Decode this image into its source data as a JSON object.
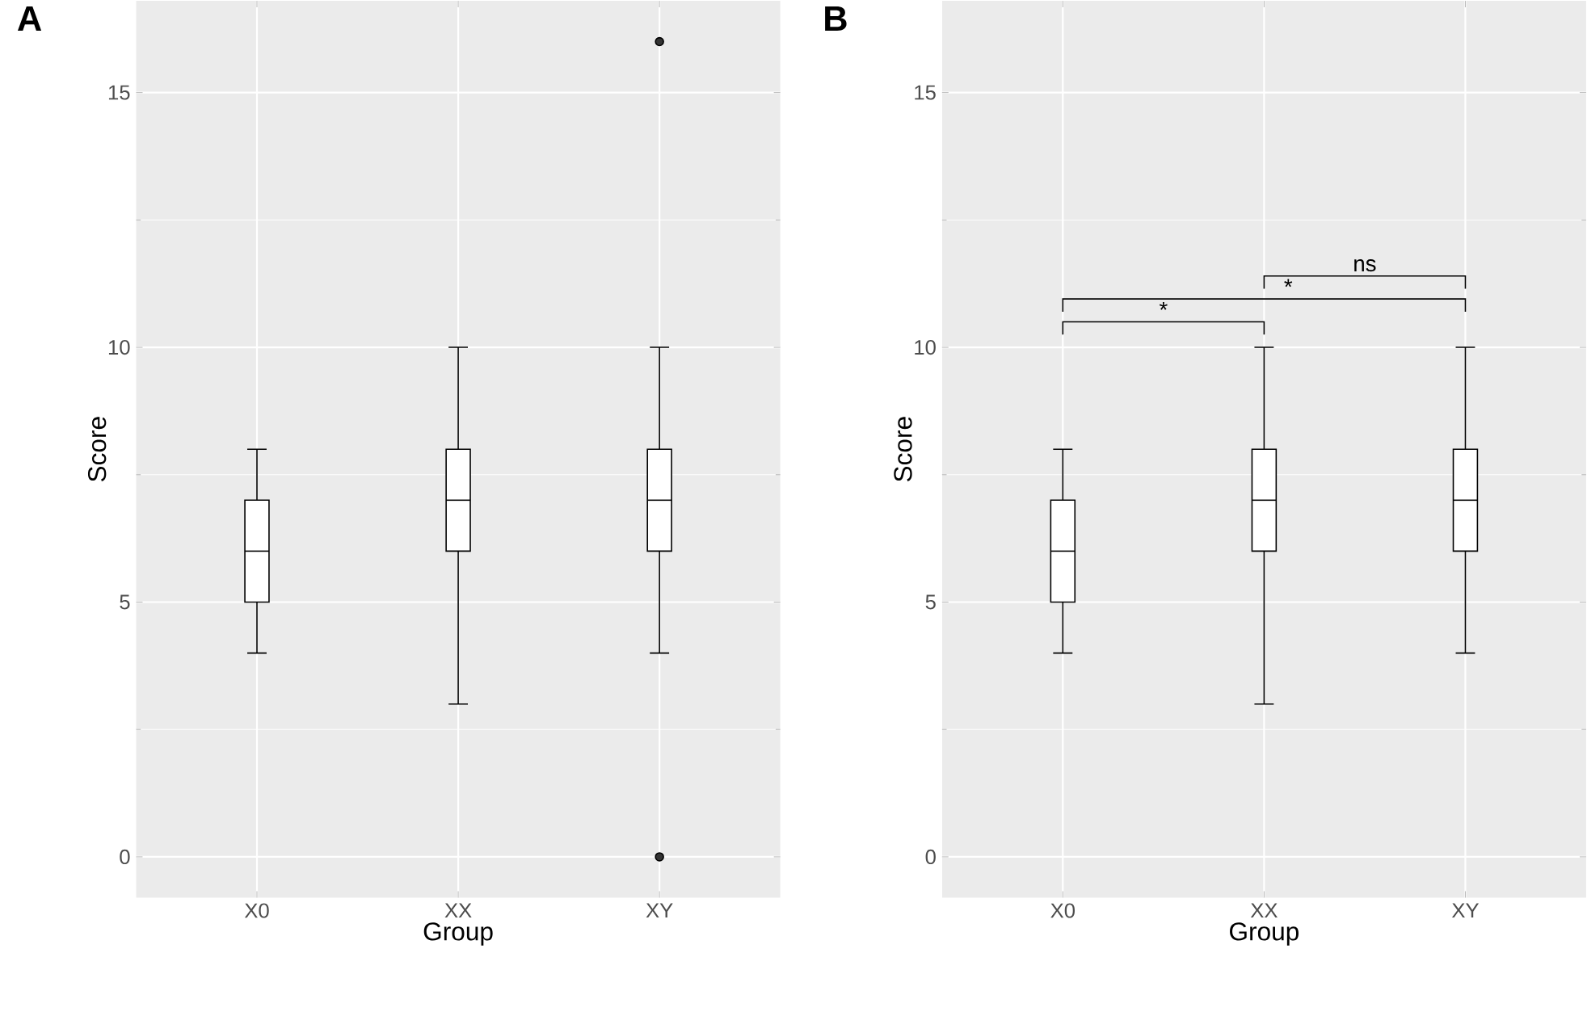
{
  "chart_data": [
    {
      "type": "box",
      "title": "A",
      "xlabel": "Group",
      "ylabel": "Score",
      "categories": [
        "X0",
        "XX",
        "XY"
      ],
      "ylim": [
        -0.8,
        16.8
      ],
      "yticks": [
        0,
        5,
        10,
        15
      ],
      "grid": true,
      "boxes": [
        {
          "low": 4,
          "q1": 5,
          "median": 6,
          "q3": 7,
          "high": 8
        },
        {
          "low": 3,
          "q1": 6,
          "median": 7,
          "q3": 8,
          "high": 10
        },
        {
          "low": 4,
          "q1": 6,
          "median": 7,
          "q3": 8,
          "high": 10,
          "outliers": [
            0,
            16
          ]
        }
      ]
    },
    {
      "type": "box",
      "title": "B",
      "xlabel": "Group",
      "ylabel": "Score",
      "categories": [
        "X0",
        "XX",
        "XY"
      ],
      "ylim": [
        -0.8,
        16.8
      ],
      "yticks": [
        0,
        5,
        10,
        15
      ],
      "grid": true,
      "boxes": [
        {
          "low": 4,
          "q1": 5,
          "median": 6,
          "q3": 7,
          "high": 8
        },
        {
          "low": 3,
          "q1": 6,
          "median": 7,
          "q3": 8,
          "high": 10
        },
        {
          "low": 4,
          "q1": 6,
          "median": 7,
          "q3": 8,
          "high": 10
        }
      ],
      "annotations": [
        "*",
        "*",
        "ns"
      ]
    }
  ]
}
